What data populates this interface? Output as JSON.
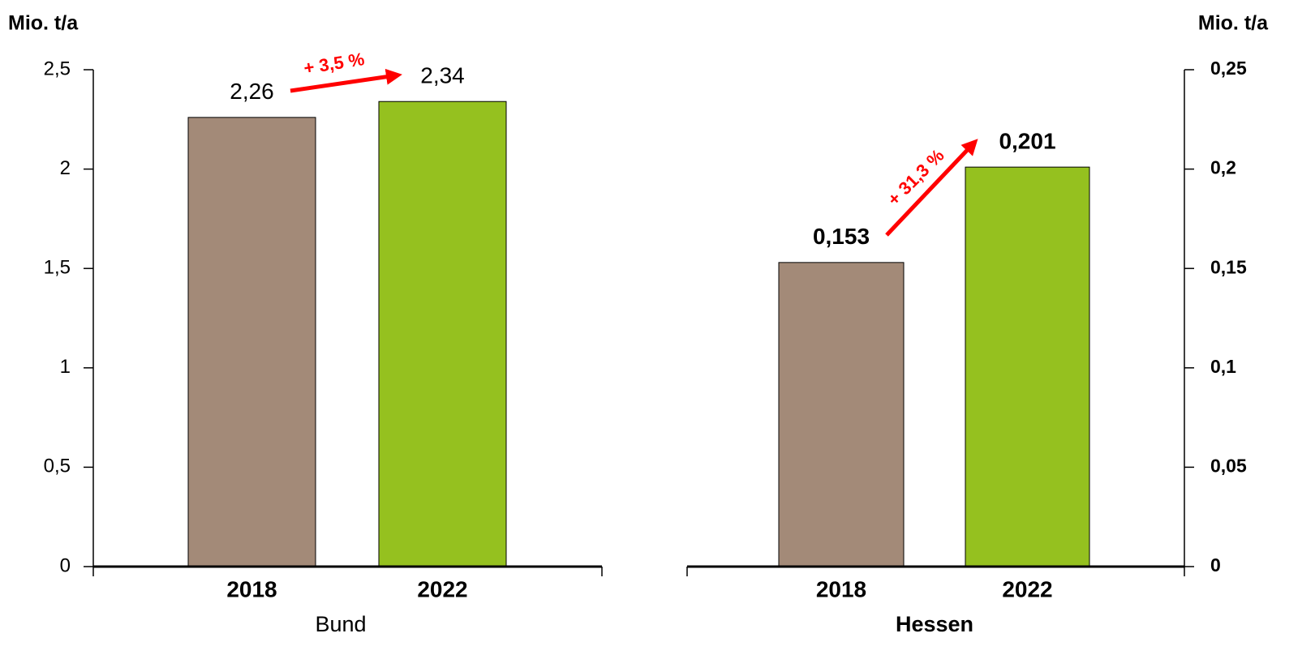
{
  "chart_data": [
    {
      "type": "bar",
      "xlabel": "Bund",
      "ylabel": "Mio. t/a",
      "y_axis_side": "left",
      "categories": [
        "2018",
        "2022"
      ],
      "values": [
        2.26,
        2.34
      ],
      "value_labels": [
        "2,26",
        "2,34"
      ],
      "colors": [
        "#a38a78",
        "#95c11f"
      ],
      "annotation": "+ 3,5 %",
      "ylim": [
        0,
        2.5
      ],
      "yticks": [
        0,
        {
          "value": 0.5,
          "label": "0,5"
        },
        1,
        {
          "value": 1.5,
          "label": "1,5"
        },
        2,
        {
          "value": 2.5,
          "label": "2,5"
        }
      ]
    },
    {
      "type": "bar",
      "xlabel": "Hessen",
      "ylabel": "Mio. t/a",
      "y_axis_side": "right",
      "categories": [
        "2018",
        "2022"
      ],
      "values": [
        0.153,
        0.201
      ],
      "value_labels": [
        "0,153",
        "0,201"
      ],
      "colors": [
        "#a38a78",
        "#95c11f"
      ],
      "annotation": "+ 31,3 %",
      "ylim": [
        0,
        0.25
      ],
      "yticks": [
        0,
        {
          "value": 0.05,
          "label": "0,05"
        },
        {
          "value": 0.1,
          "label": "0,1"
        },
        {
          "value": 0.15,
          "label": "0,15"
        },
        {
          "value": 0.2,
          "label": "0,2"
        },
        {
          "value": 0.25,
          "label": "0,25"
        }
      ]
    }
  ]
}
